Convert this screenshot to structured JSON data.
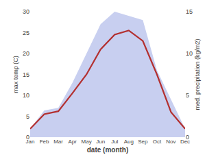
{
  "chart_data": {
    "type": "line",
    "x_label": "date (month)",
    "y_label": "max temp (C)",
    "y2_label": "med. precipitation (kg/m2)",
    "categories": [
      "Jan",
      "Feb",
      "Mar",
      "Apr",
      "May",
      "Jun",
      "Jul",
      "Aug",
      "Sep",
      "Oct",
      "Nov",
      "Dec"
    ],
    "series": [
      {
        "type": "area",
        "axis": "y2",
        "color": "#c8cff0",
        "values": [
          1.0,
          3.2,
          3.5,
          6.5,
          10,
          13.5,
          15,
          14.5,
          14,
          8,
          4.5,
          1.0
        ]
      },
      {
        "type": "line",
        "color": "#b33030",
        "values": [
          2,
          5.5,
          6.2,
          10.5,
          15,
          21,
          24.5,
          25.5,
          23,
          15,
          6,
          2
        ]
      }
    ],
    "ylim": [
      0,
      30
    ],
    "yticks": [
      0,
      5,
      10,
      15,
      20,
      25,
      30
    ],
    "y2lim": [
      0,
      15
    ],
    "y2ticks": [
      0,
      5,
      10,
      15
    ],
    "grid": false
  }
}
